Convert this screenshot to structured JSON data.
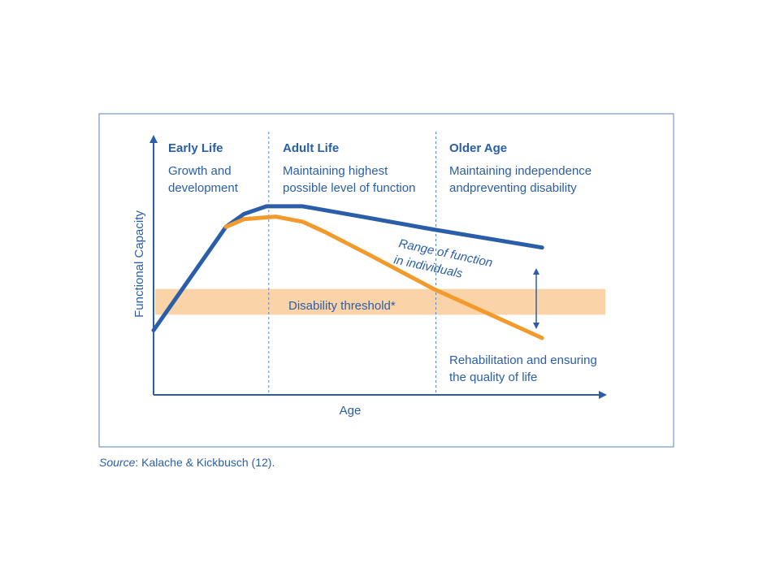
{
  "chart_data": {
    "type": "line",
    "xlabel": "Age",
    "ylabel": "Functional Capacity",
    "phases": [
      {
        "title": "Early Life",
        "desc": [
          "Growth and",
          "development"
        ]
      },
      {
        "title": "Adult Life",
        "desc": [
          "Maintaining highest",
          "possible level of function"
        ]
      },
      {
        "title": "Older Age",
        "desc": [
          "Maintaining independence",
          "andpreventing disability"
        ]
      }
    ],
    "threshold_label": "Disability threshold*",
    "range_label": [
      "Range of function",
      "in individuals"
    ],
    "rehab_label": [
      "Rehabilitation and ensuring",
      "the quality of life"
    ],
    "series": [
      {
        "color": "#2a5ea8",
        "points": [
          [
            0.0,
            0.25
          ],
          [
            0.16,
            0.65
          ],
          [
            0.2,
            0.7
          ],
          [
            0.25,
            0.73
          ],
          [
            0.33,
            0.73
          ],
          [
            0.46,
            0.69
          ],
          [
            0.62,
            0.64
          ],
          [
            0.86,
            0.57
          ]
        ]
      },
      {
        "color": "#f39a2d",
        "points": [
          [
            0.16,
            0.65
          ],
          [
            0.2,
            0.68
          ],
          [
            0.27,
            0.69
          ],
          [
            0.33,
            0.67
          ],
          [
            0.38,
            0.63
          ],
          [
            0.48,
            0.54
          ],
          [
            0.62,
            0.41
          ],
          [
            0.86,
            0.22
          ]
        ]
      }
    ],
    "threshold": {
      "low": 0.31,
      "high": 0.41,
      "color": "#fbd3a8"
    },
    "phase_dividers": [
      0.255,
      0.625
    ],
    "axis_color": "#2a5ea8",
    "grid": false,
    "legend": "none"
  },
  "source": {
    "label": "Source",
    "text": ": Kalache & Kickbusch (12)."
  }
}
